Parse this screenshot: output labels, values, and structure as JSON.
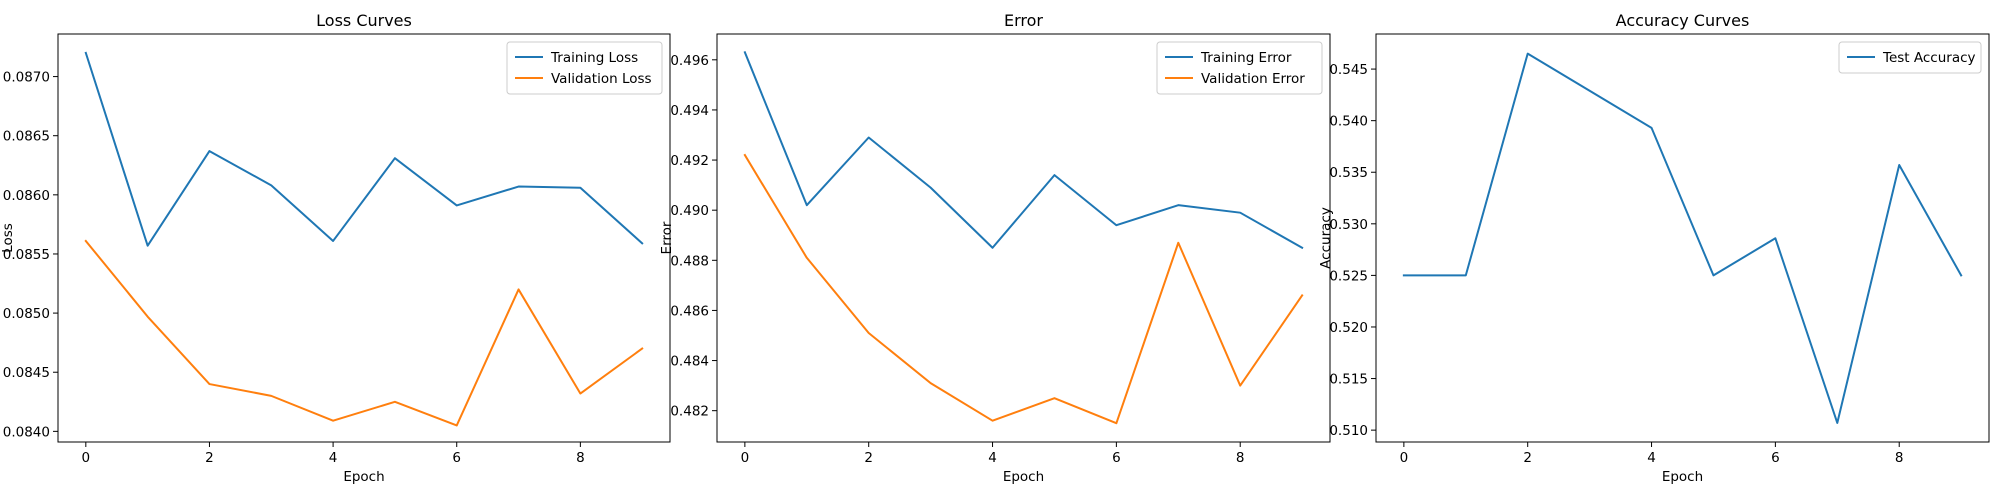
{
  "chart_data": [
    {
      "type": "line",
      "title": "Loss Curves",
      "xlabel": "Epoch",
      "ylabel": "Loss",
      "x": [
        0,
        1,
        2,
        3,
        4,
        5,
        6,
        7,
        8,
        9
      ],
      "xticks": [
        0,
        2,
        4,
        6,
        8
      ],
      "xlim": [
        -0.45,
        9.45
      ],
      "yticks": [
        0.084,
        0.0845,
        0.085,
        0.0855,
        0.086,
        0.0865,
        0.087
      ],
      "ytick_labels": [
        "0.0840",
        "0.0845",
        "0.0850",
        "0.0855",
        "0.0860",
        "0.0865",
        "0.0870"
      ],
      "ylim": [
        0.08391,
        0.08736
      ],
      "legend_position": "top-right",
      "grid": false,
      "series": [
        {
          "name": "Training Loss",
          "color": "#1f77b4",
          "values": [
            0.0872,
            0.08557,
            0.08637,
            0.08608,
            0.08561,
            0.08631,
            0.08591,
            0.08607,
            0.08606,
            0.08559
          ]
        },
        {
          "name": "Validation Loss",
          "color": "#ff7f0e",
          "values": [
            0.08561,
            0.08497,
            0.0844,
            0.0843,
            0.08409,
            0.08425,
            0.08405,
            0.0852,
            0.08432,
            0.0847
          ]
        }
      ]
    },
    {
      "type": "line",
      "title": "Error",
      "xlabel": "Epoch",
      "ylabel": "Error",
      "x": [
        0,
        1,
        2,
        3,
        4,
        5,
        6,
        7,
        8,
        9
      ],
      "xticks": [
        0,
        2,
        4,
        6,
        8
      ],
      "xlim": [
        -0.45,
        9.45
      ],
      "yticks": [
        0.482,
        0.484,
        0.486,
        0.488,
        0.49,
        0.492,
        0.494,
        0.496
      ],
      "ytick_labels": [
        "0.482",
        "0.484",
        "0.486",
        "0.488",
        "0.490",
        "0.492",
        "0.494",
        "0.496"
      ],
      "ylim": [
        0.48075,
        0.49703
      ],
      "legend_position": "top-right",
      "grid": false,
      "series": [
        {
          "name": "Training Error",
          "color": "#1f77b4",
          "values": [
            0.4963,
            0.4902,
            0.4929,
            0.4909,
            0.4885,
            0.4914,
            0.4894,
            0.4902,
            0.4899,
            0.4885
          ]
        },
        {
          "name": "Validation Error",
          "color": "#ff7f0e",
          "values": [
            0.4922,
            0.4881,
            0.4851,
            0.4831,
            0.4816,
            0.4825,
            0.4815,
            0.4887,
            0.483,
            0.4866
          ]
        }
      ]
    },
    {
      "type": "line",
      "title": "Accuracy Curves",
      "xlabel": "Epoch",
      "ylabel": "Accuracy",
      "x": [
        0,
        1,
        2,
        3,
        4,
        5,
        6,
        7,
        8,
        9
      ],
      "xticks": [
        0,
        2,
        4,
        6,
        8
      ],
      "xlim": [
        -0.45,
        9.45
      ],
      "yticks": [
        0.51,
        0.515,
        0.52,
        0.525,
        0.53,
        0.535,
        0.54,
        0.545
      ],
      "ytick_labels": [
        "0.510",
        "0.515",
        "0.520",
        "0.525",
        "0.530",
        "0.535",
        "0.540",
        "0.545"
      ],
      "ylim": [
        0.50885,
        0.5484
      ],
      "legend_position": "top-right",
      "grid": false,
      "series": [
        {
          "name": "Test Accuracy",
          "color": "#1f77b4",
          "values": [
            0.525,
            0.525,
            0.5465,
            0.5429,
            0.5393,
            0.525,
            0.5286,
            0.5107,
            0.5357,
            0.525
          ]
        }
      ]
    }
  ]
}
